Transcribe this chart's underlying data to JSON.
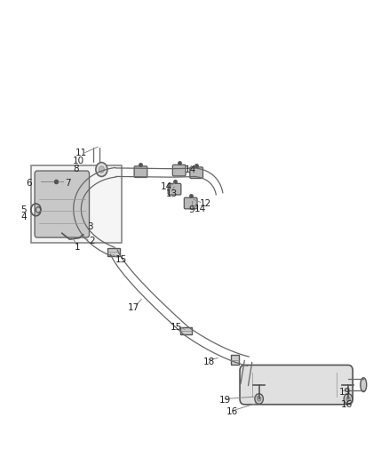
{
  "bg_color": "#ffffff",
  "line_color": "#555555",
  "text_color": "#222222",
  "label_fontsize": 7.5,
  "pipe_color": "#666666",
  "box_color": "#f5f5f5",
  "muffler_color": "#e0e0e0"
}
